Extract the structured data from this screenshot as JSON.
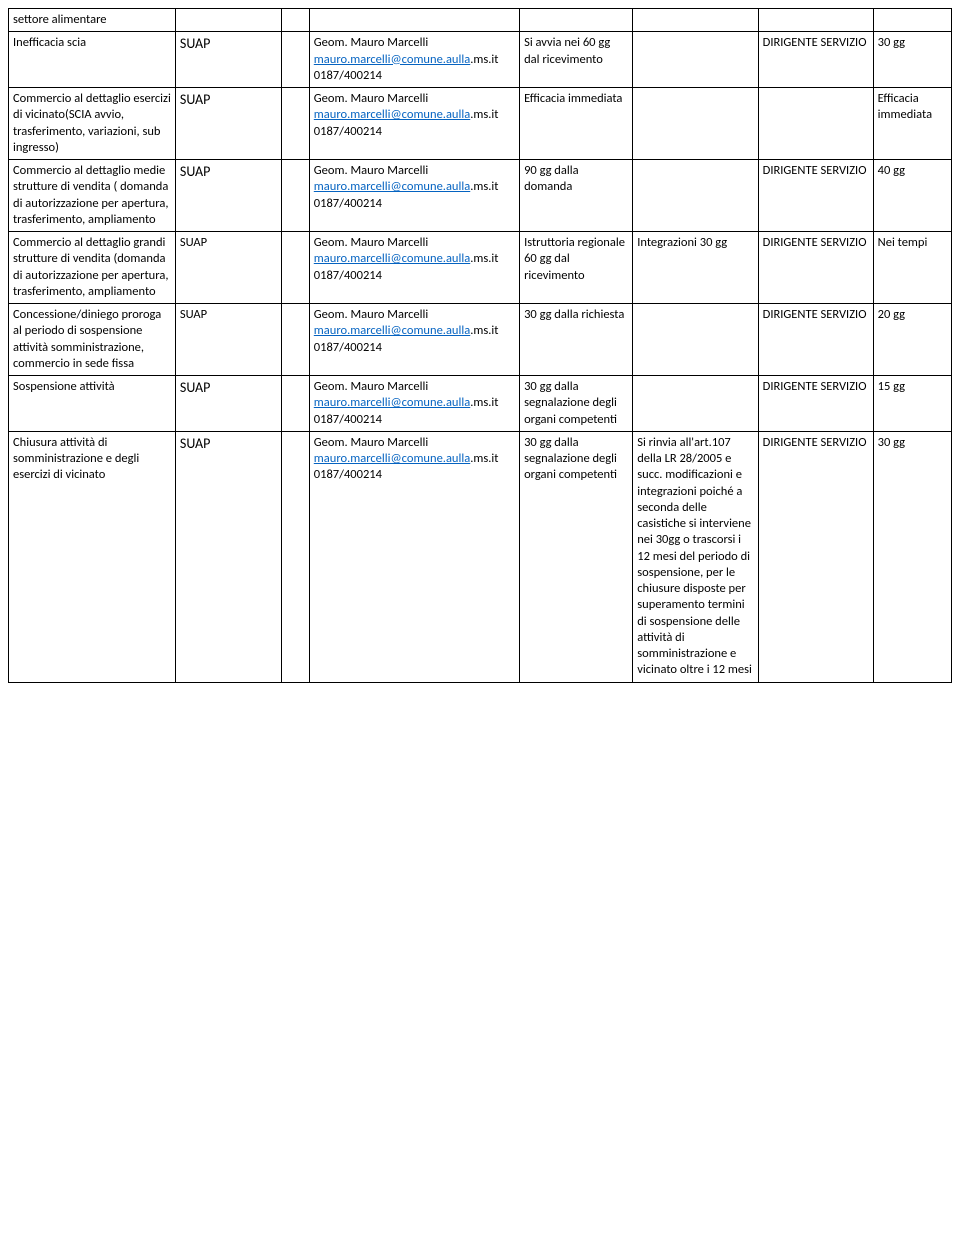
{
  "table": {
    "column_widths": [
      "17.7%",
      "11.2%",
      "3%",
      "22.3%",
      "12%",
      "13.3%",
      "12.2%",
      "8.3%"
    ],
    "border_color": "#000000",
    "background_color": "#ffffff",
    "link_color": "#0563c1",
    "font_family": "Calibri, Arial, sans-serif",
    "cell_font_size": 12.5,
    "suap_font_size": 14,
    "contact": {
      "name": "Geom. Mauro Marcelli",
      "email_full": "mauro.marcelli@comune.aulla.ms.it",
      "email_part1": "mauro.marcelli@comune.aulla",
      "email_part2": ".ms.it",
      "phone": "0187/400214"
    },
    "rows": [
      {
        "c0": "settore alimentare",
        "c1": "",
        "c2": "",
        "c3_type": "empty",
        "c4": "",
        "c5": "",
        "c6": "",
        "c7": ""
      },
      {
        "c0": "Inefficacia scia",
        "c1": "SUAP",
        "c1_class": "suap",
        "c2": "",
        "c3_type": "contact",
        "c4": "Si avvia nei 60 gg  dal ricevimento",
        "c5": "",
        "c6": "DIRIGENTE SERVIZIO",
        "c7": "30 gg"
      },
      {
        "c0": "Commercio al dettaglio esercizi di vicinato(SCIA avvio, trasferimento, variazioni, sub ingresso)",
        "c1": "SUAP",
        "c1_class": "suap",
        "c2": "",
        "c3_type": "contact",
        "c4": "Efficacia immediata",
        "c5": "",
        "c6": "",
        "c7": "Efficacia immediata"
      },
      {
        "c0": "Commercio al dettaglio medie strutture di vendita ( domanda di autorizzazione per apertura, trasferimento, ampliamento",
        "c1": "SUAP",
        "c1_class": "suap",
        "c2": "",
        "c3_type": "contact",
        "c4": "90 gg dalla domanda",
        "c5": "",
        "c6": "DIRIGENTE SERVIZIO",
        "c7": "40 gg"
      },
      {
        "c0": "Commercio al dettaglio grandi strutture di vendita (domanda di autorizzazione per apertura, trasferimento, ampliamento",
        "c1": "SUAP",
        "c1_class": "",
        "c2": "",
        "c3_type": "contact",
        "c4": "Istruttoria regionale 60 gg dal ricevimento",
        "c5": "Integrazioni 30 gg",
        "c6": "DIRIGENTE SERVIZIO",
        "c7": "Nei tempi"
      },
      {
        "c0": "Concessione/diniego proroga al periodo di sospensione attività somministrazione, commercio in sede fissa",
        "c1": "SUAP",
        "c1_class": "",
        "c2": "",
        "c3_type": "contact",
        "c4": "30 gg dalla richiesta",
        "c5": "",
        "c6": "DIRIGENTE SERVIZIO",
        "c7": "20 gg"
      },
      {
        "c0": "Sospensione attività",
        "c1": "SUAP",
        "c1_class": "suap",
        "c2": "",
        "c3_type": "contact",
        "c4": "30 gg dalla segnalazione degli organi competenti",
        "c5": "",
        "c6": "DIRIGENTE SERVIZIO",
        "c7": "15 gg"
      },
      {
        "c0": "Chiusura attività di somministrazione e degli esercizi di vicinato",
        "c1": "SUAP",
        "c1_class": "suap",
        "c2": "",
        "c3_type": "contact",
        "c4": "30 gg dalla segnalazione degli organi competenti",
        "c5": "Si rinvia all'art.107 della LR 28/2005 e succ. modificazioni e integrazioni poiché a seconda delle casistiche si interviene nei 30gg o trascorsi i 12 mesi del periodo di sospensione, per le chiusure disposte per superamento termini di sospensione delle attività di somministrazione e vicinato oltre i 12 mesi",
        "c6": "DIRIGENTE SERVIZIO",
        "c7": "30 gg"
      }
    ]
  }
}
